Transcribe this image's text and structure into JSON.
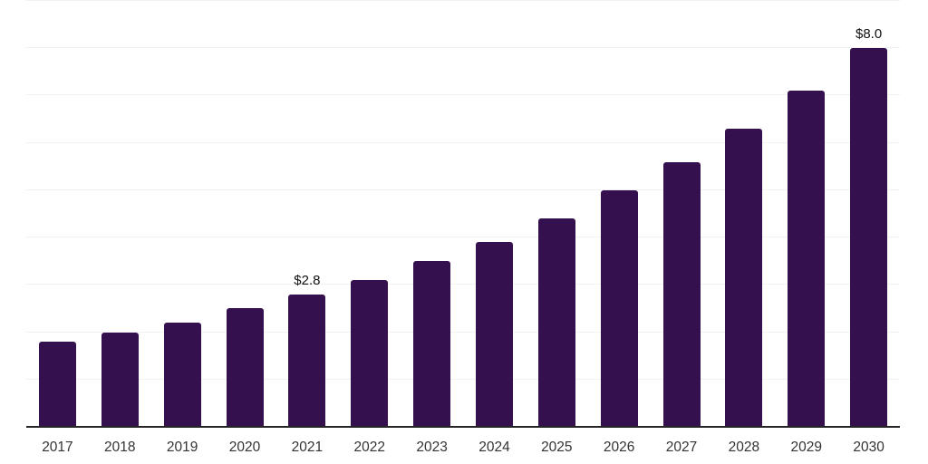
{
  "chart_data": {
    "type": "bar",
    "title": "",
    "xlabel": "",
    "ylabel": "",
    "categories": [
      "2017",
      "2018",
      "2019",
      "2020",
      "2021",
      "2022",
      "2023",
      "2024",
      "2025",
      "2026",
      "2027",
      "2028",
      "2029",
      "2030"
    ],
    "values": [
      1.8,
      2.0,
      2.2,
      2.5,
      2.8,
      3.1,
      3.5,
      3.9,
      4.4,
      5.0,
      5.6,
      6.3,
      7.1,
      8.0
    ],
    "value_labels": [
      "",
      "",
      "",
      "",
      "$2.8",
      "",
      "",
      "",
      "",
      "",
      "",
      "",
      "",
      "$8.0"
    ],
    "ylim": [
      0,
      9
    ],
    "grid": "horizontal",
    "grid_interval": 1,
    "legend_position": "none",
    "colors": {
      "bar": "#34114E",
      "grid_line": "#f1f1f1",
      "axis_line": "#252525",
      "tick_label": "#333333",
      "value_label": "#111111",
      "background": "#ffffff"
    }
  }
}
